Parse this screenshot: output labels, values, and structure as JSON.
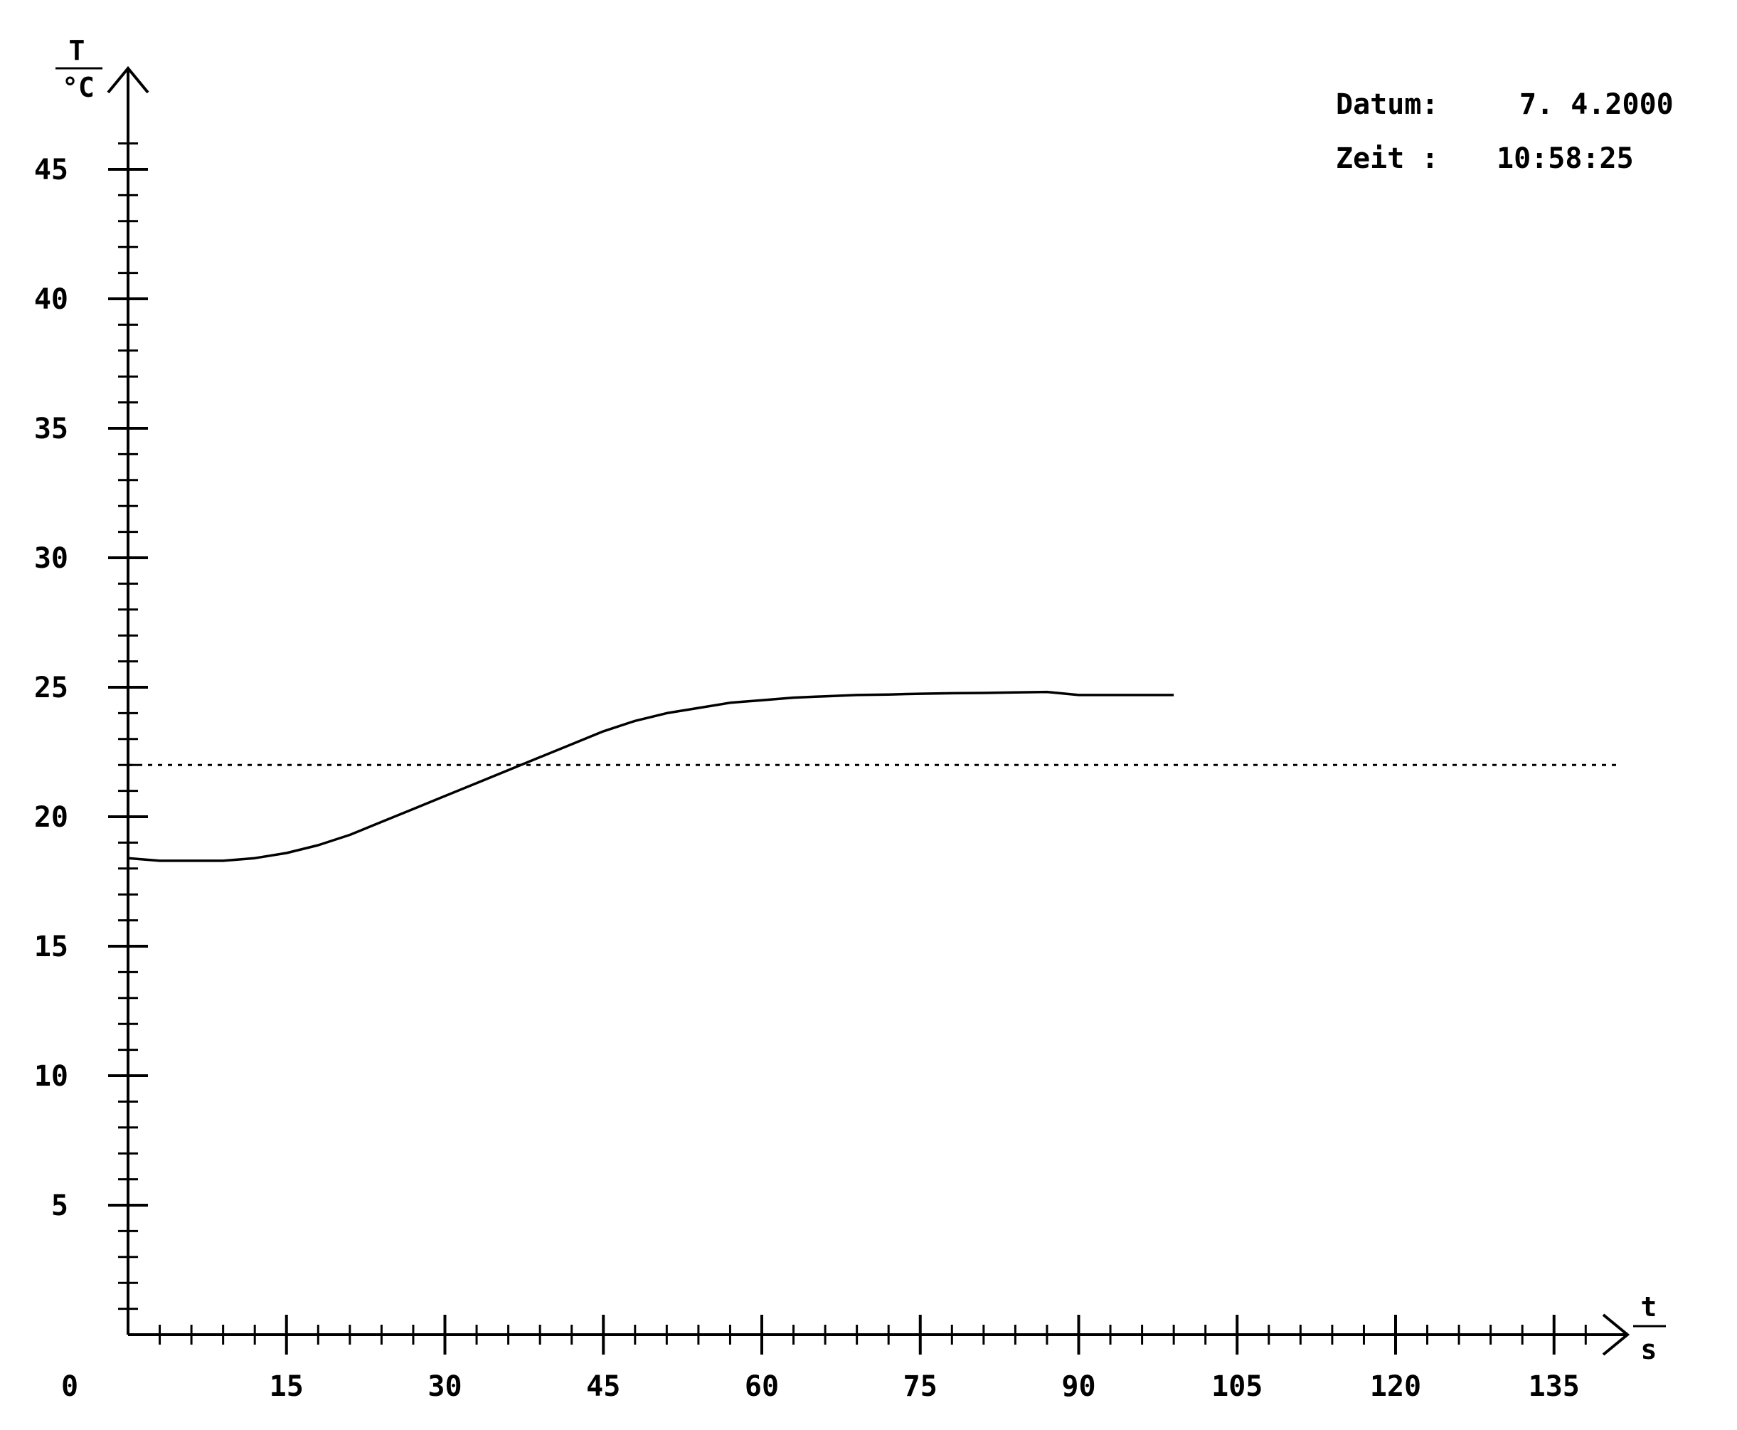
{
  "chart_data": {
    "type": "line",
    "title": "",
    "ylabel": "T",
    "yunit": "°C",
    "xlabel": "t",
    "xunit": "s",
    "xlim": [
      0,
      142
    ],
    "ylim": [
      0,
      48
    ],
    "x_ticks": [
      "0",
      "15",
      "30",
      "45",
      "60",
      "75",
      "90",
      "105",
      "120",
      "135"
    ],
    "y_ticks": [
      "5",
      "10",
      "15",
      "20",
      "25",
      "30",
      "35",
      "40",
      "45"
    ],
    "grid": false,
    "series": [
      {
        "style": "solid",
        "x": [
          0,
          3,
          6,
          9,
          12,
          15,
          18,
          21,
          24,
          27,
          30,
          33,
          36,
          39,
          42,
          45,
          48,
          51,
          54,
          57,
          60,
          63,
          66,
          69,
          72,
          75,
          78,
          81,
          84,
          87,
          90,
          93,
          96,
          99
        ],
        "y": [
          18.4,
          18.3,
          18.3,
          18.3,
          18.4,
          18.6,
          18.9,
          19.3,
          19.8,
          20.3,
          20.8,
          21.3,
          21.8,
          22.3,
          22.8,
          23.3,
          23.7,
          24.0,
          24.2,
          24.4,
          24.5,
          24.6,
          24.65,
          24.7,
          24.72,
          24.75,
          24.77,
          24.78,
          24.8,
          24.82,
          24.7,
          24.7,
          24.7,
          24.7
        ]
      },
      {
        "style": "dotted",
        "x": [
          0,
          141
        ],
        "y": [
          22.0,
          22.0
        ]
      }
    ]
  },
  "info": {
    "datum_label": "Datum:",
    "datum_value": "7. 4.2000",
    "zeit_label": "Zeit :",
    "zeit_value": "10:58:25"
  }
}
